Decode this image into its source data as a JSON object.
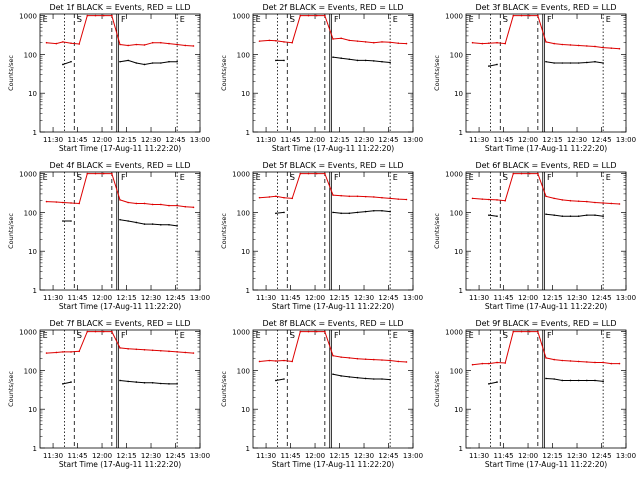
{
  "figure": {
    "xtick_labels": [
      "11:30",
      "11:45",
      "12:00",
      "12:15",
      "12:30",
      "12:45",
      "13:00"
    ],
    "ytick_labels": [
      "1",
      "10",
      "100",
      "1000"
    ],
    "ylabel": "Counts/sec",
    "xlabel": "Start Time (17-Aug-11 11:22:20)",
    "marker_letters": [
      "E",
      "S",
      "F",
      "E"
    ]
  },
  "chart_data": [
    {
      "type": "line",
      "title": "Det 1f BLACK = Events, RED = LLD",
      "ylabel": "Counts/sec",
      "xlabel": "Start Time (17-Aug-11 11:22:20)",
      "xlim": [
        "11:22",
        "13:00"
      ],
      "ylim": [
        1,
        1100
      ],
      "yscale": "log",
      "x": [
        "11:26",
        "11:32",
        "11:36",
        "11:41",
        "11:46",
        "11:51",
        "11:56",
        "12:01",
        "12:06",
        "12:11",
        "12:16",
        "12:21",
        "12:26",
        "12:31",
        "12:36",
        "12:41",
        "12:46",
        "12:51",
        "12:56"
      ],
      "series": [
        {
          "name": "LLD",
          "color": "#dd0000",
          "values": [
            200,
            190,
            210,
            195,
            185,
            1000,
            1000,
            1000,
            1000,
            180,
            170,
            180,
            175,
            200,
            200,
            190,
            180,
            170,
            165
          ]
        },
        {
          "name": "Events",
          "values": [
            null,
            null,
            55,
            65,
            null,
            null,
            null,
            null,
            null,
            65,
            70,
            60,
            55,
            60,
            60,
            65,
            65,
            null,
            null
          ]
        }
      ]
    },
    {
      "type": "line",
      "title": "Det 2f BLACK = Events, RED = LLD",
      "ylabel": "Counts/sec",
      "xlabel": "Start Time (17-Aug-11 11:22:20)",
      "xlim": [
        "11:22",
        "13:00"
      ],
      "ylim": [
        1,
        1100
      ],
      "yscale": "log",
      "x": [
        "11:26",
        "11:32",
        "11:36",
        "11:41",
        "11:46",
        "11:51",
        "11:56",
        "12:01",
        "12:06",
        "12:11",
        "12:16",
        "12:21",
        "12:26",
        "12:31",
        "12:36",
        "12:41",
        "12:46",
        "12:51",
        "12:56"
      ],
      "series": [
        {
          "name": "LLD",
          "color": "#dd0000",
          "values": [
            220,
            230,
            225,
            210,
            200,
            1000,
            1000,
            1000,
            1000,
            250,
            260,
            230,
            220,
            210,
            200,
            210,
            205,
            195,
            190
          ]
        },
        {
          "name": "Events",
          "values": [
            null,
            null,
            70,
            70,
            null,
            null,
            null,
            null,
            null,
            85,
            80,
            75,
            70,
            70,
            68,
            65,
            62,
            null,
            null
          ]
        }
      ]
    },
    {
      "type": "line",
      "title": "Det 3f BLACK = Events, RED = LLD",
      "ylabel": "Counts/sec",
      "xlabel": "Start Time (17-Aug-11 11:22:20)",
      "xlim": [
        "11:22",
        "13:00"
      ],
      "ylim": [
        1,
        1100
      ],
      "yscale": "log",
      "x": [
        "11:26",
        "11:32",
        "11:36",
        "11:41",
        "11:46",
        "11:51",
        "11:56",
        "12:01",
        "12:06",
        "12:11",
        "12:16",
        "12:21",
        "12:26",
        "12:31",
        "12:36",
        "12:41",
        "12:46",
        "12:51",
        "12:56"
      ],
      "series": [
        {
          "name": "LLD",
          "color": "#dd0000",
          "values": [
            200,
            190,
            195,
            200,
            190,
            1000,
            1000,
            1000,
            1000,
            210,
            190,
            180,
            175,
            170,
            165,
            160,
            150,
            145,
            140
          ]
        },
        {
          "name": "Events",
          "values": [
            null,
            null,
            50,
            55,
            null,
            null,
            null,
            null,
            null,
            65,
            60,
            60,
            60,
            60,
            62,
            65,
            60,
            null,
            null
          ]
        }
      ]
    },
    {
      "type": "line",
      "title": "Det 4f BLACK = Events, RED = LLD",
      "ylabel": "Counts/sec",
      "xlabel": "Start Time (17-Aug-11 11:22:20)",
      "xlim": [
        "11:22",
        "13:00"
      ],
      "ylim": [
        1,
        1100
      ],
      "yscale": "log",
      "x": [
        "11:26",
        "11:32",
        "11:36",
        "11:41",
        "11:46",
        "11:51",
        "11:56",
        "12:01",
        "12:06",
        "12:11",
        "12:16",
        "12:21",
        "12:26",
        "12:31",
        "12:36",
        "12:41",
        "12:46",
        "12:51",
        "12:56"
      ],
      "series": [
        {
          "name": "LLD",
          "color": "#dd0000",
          "values": [
            190,
            185,
            180,
            175,
            170,
            1000,
            1000,
            1000,
            1000,
            210,
            180,
            170,
            170,
            160,
            160,
            150,
            150,
            140,
            135
          ]
        },
        {
          "name": "Events",
          "values": [
            null,
            null,
            60,
            60,
            null,
            null,
            null,
            null,
            null,
            65,
            60,
            55,
            50,
            50,
            48,
            48,
            45,
            null,
            null
          ]
        }
      ]
    },
    {
      "type": "line",
      "title": "Det 5f BLACK = Events, RED = LLD",
      "ylabel": "Counts/sec",
      "xlabel": "Start Time (17-Aug-11 11:22:20)",
      "xlim": [
        "11:22",
        "13:00"
      ],
      "ylim": [
        1,
        1100
      ],
      "yscale": "log",
      "x": [
        "11:26",
        "11:32",
        "11:36",
        "11:41",
        "11:46",
        "11:51",
        "11:56",
        "12:01",
        "12:06",
        "12:11",
        "12:16",
        "12:21",
        "12:26",
        "12:31",
        "12:36",
        "12:41",
        "12:46",
        "12:51",
        "12:56"
      ],
      "series": [
        {
          "name": "LLD",
          "color": "#dd0000",
          "values": [
            240,
            250,
            260,
            240,
            230,
            1000,
            1000,
            1000,
            1000,
            280,
            270,
            260,
            260,
            255,
            250,
            240,
            230,
            220,
            215
          ]
        },
        {
          "name": "Events",
          "values": [
            null,
            null,
            95,
            100,
            null,
            null,
            null,
            null,
            null,
            100,
            95,
            95,
            100,
            105,
            110,
            110,
            105,
            null,
            null
          ]
        }
      ]
    },
    {
      "type": "line",
      "title": "Det 6f BLACK = Events, RED = LLD",
      "ylabel": "Counts/sec",
      "xlabel": "Start Time (17-Aug-11 11:22:20)",
      "xlim": [
        "11:22",
        "13:00"
      ],
      "ylim": [
        1,
        1100
      ],
      "yscale": "log",
      "x": [
        "11:26",
        "11:32",
        "11:36",
        "11:41",
        "11:46",
        "11:51",
        "11:56",
        "12:01",
        "12:06",
        "12:11",
        "12:16",
        "12:21",
        "12:26",
        "12:31",
        "12:36",
        "12:41",
        "12:46",
        "12:51",
        "12:56"
      ],
      "series": [
        {
          "name": "LLD",
          "color": "#dd0000",
          "values": [
            230,
            220,
            215,
            210,
            200,
            1000,
            1000,
            1000,
            1000,
            260,
            230,
            210,
            200,
            195,
            190,
            180,
            175,
            170,
            165
          ]
        },
        {
          "name": "Events",
          "values": [
            null,
            null,
            85,
            80,
            null,
            null,
            null,
            null,
            null,
            90,
            85,
            80,
            80,
            80,
            85,
            85,
            80,
            null,
            null
          ]
        }
      ]
    },
    {
      "type": "line",
      "title": "Det 7f BLACK = Events, RED = LLD",
      "ylabel": "Counts/sec",
      "xlabel": "Start Time (17-Aug-11 11:22:20)",
      "xlim": [
        "11:22",
        "13:00"
      ],
      "ylim": [
        1,
        1100
      ],
      "yscale": "log",
      "x": [
        "11:26",
        "11:32",
        "11:36",
        "11:41",
        "11:46",
        "11:51",
        "11:56",
        "12:01",
        "12:06",
        "12:11",
        "12:16",
        "12:21",
        "12:26",
        "12:31",
        "12:36",
        "12:41",
        "12:46",
        "12:51",
        "12:56"
      ],
      "series": [
        {
          "name": "LLD",
          "color": "#dd0000",
          "values": [
            280,
            290,
            300,
            300,
            310,
            1000,
            1000,
            1000,
            1000,
            380,
            360,
            350,
            340,
            330,
            320,
            310,
            300,
            290,
            280
          ]
        },
        {
          "name": "Events",
          "values": [
            null,
            null,
            45,
            50,
            null,
            null,
            null,
            null,
            null,
            55,
            52,
            50,
            48,
            48,
            46,
            45,
            45,
            null,
            null
          ]
        }
      ]
    },
    {
      "type": "line",
      "title": "Det 8f BLACK = Events, RED = LLD",
      "ylabel": "Counts/sec",
      "xlabel": "Start Time (17-Aug-11 11:22:20)",
      "xlim": [
        "11:22",
        "13:00"
      ],
      "ylim": [
        1,
        1100
      ],
      "yscale": "log",
      "x": [
        "11:26",
        "11:32",
        "11:36",
        "11:41",
        "11:46",
        "11:51",
        "11:56",
        "12:01",
        "12:06",
        "12:11",
        "12:16",
        "12:21",
        "12:26",
        "12:31",
        "12:36",
        "12:41",
        "12:46",
        "12:51",
        "12:56"
      ],
      "series": [
        {
          "name": "LLD",
          "color": "#dd0000",
          "values": [
            170,
            180,
            175,
            180,
            170,
            1000,
            1000,
            1000,
            1000,
            240,
            220,
            210,
            200,
            195,
            190,
            185,
            180,
            170,
            165
          ]
        },
        {
          "name": "Events",
          "values": [
            null,
            null,
            55,
            60,
            null,
            null,
            null,
            null,
            null,
            80,
            72,
            68,
            65,
            62,
            60,
            60,
            58,
            null,
            null
          ]
        }
      ]
    },
    {
      "type": "line",
      "title": "Det 9f BLACK = Events, RED = LLD",
      "ylabel": "Counts/sec",
      "xlabel": "Start Time (17-Aug-11 11:22:20)",
      "xlim": [
        "11:22",
        "13:00"
      ],
      "ylim": [
        1,
        1100
      ],
      "yscale": "log",
      "x": [
        "11:26",
        "11:32",
        "11:36",
        "11:41",
        "11:46",
        "11:51",
        "11:56",
        "12:01",
        "12:06",
        "12:11",
        "12:16",
        "12:21",
        "12:26",
        "12:31",
        "12:36",
        "12:41",
        "12:46",
        "12:51",
        "12:56"
      ],
      "series": [
        {
          "name": "LLD",
          "color": "#dd0000",
          "values": [
            140,
            150,
            150,
            160,
            155,
            1000,
            1000,
            1000,
            1000,
            210,
            190,
            180,
            175,
            170,
            165,
            160,
            160,
            150,
            150
          ]
        },
        {
          "name": "Events",
          "values": [
            null,
            null,
            45,
            50,
            null,
            null,
            null,
            null,
            null,
            62,
            60,
            55,
            55,
            55,
            55,
            55,
            52,
            null,
            null
          ]
        }
      ]
    }
  ]
}
